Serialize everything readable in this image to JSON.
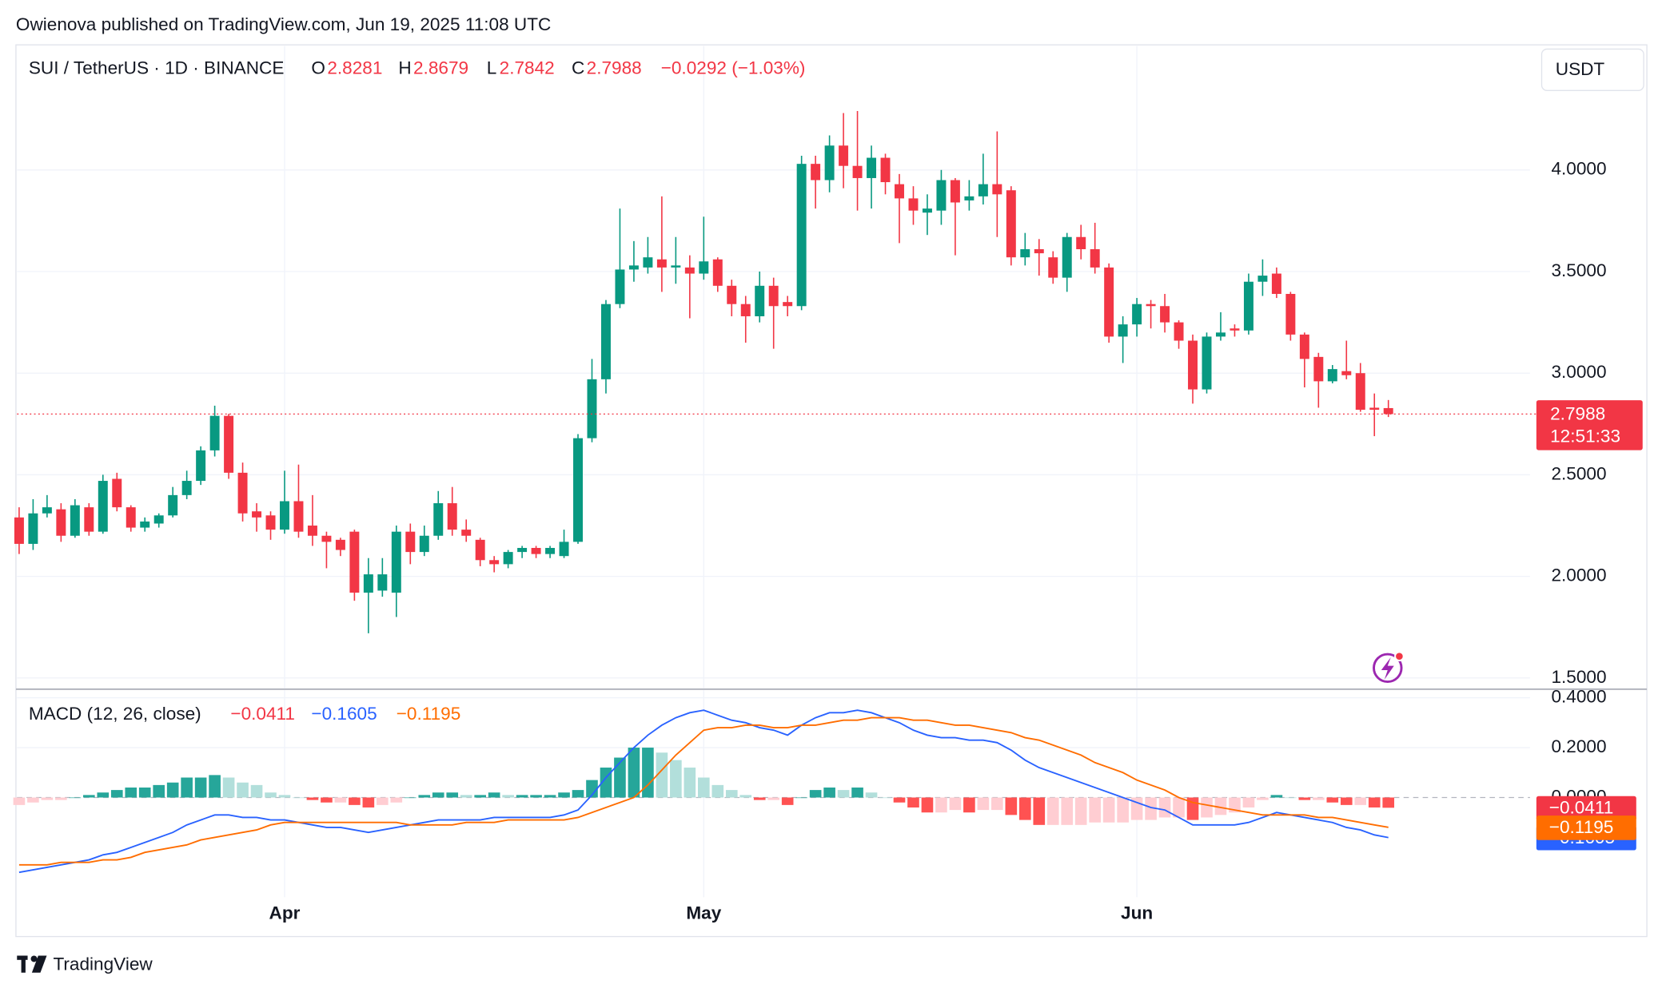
{
  "header": {
    "attribution": "Owienova published on TradingView.com, Jun 19, 2025 11:08 UTC",
    "logo": "TradingView"
  },
  "chart_data": [
    {
      "type": "candlestick",
      "title": "SUI / TetherUS · 1D · BINANCE",
      "currency": "USDT",
      "ohlc_letters": [
        "O",
        "H",
        "L",
        "C"
      ],
      "change_label": "−0.0292 (−1.03%)",
      "countdown": "12:51:33",
      "up_color": "#089981",
      "down_color": "#f23645",
      "grid": true,
      "ylim": [
        1.45,
        4.6
      ],
      "yticks": [
        {
          "value": 1.5,
          "label": "1.5000"
        },
        {
          "value": 2,
          "label": "2.0000"
        },
        {
          "value": 2.5,
          "label": "2.5000"
        },
        {
          "value": 3,
          "label": "3.0000"
        },
        {
          "value": 3.5,
          "label": "3.5000"
        },
        {
          "value": 4,
          "label": "4.0000"
        }
      ],
      "categories": [
        null,
        null,
        null,
        null,
        null,
        null,
        null,
        null,
        null,
        null,
        null,
        null,
        null,
        null,
        null,
        null,
        null,
        null,
        null,
        "Apr",
        null,
        null,
        null,
        null,
        null,
        null,
        null,
        null,
        null,
        null,
        null,
        null,
        null,
        null,
        null,
        null,
        null,
        null,
        null,
        null,
        null,
        null,
        null,
        null,
        null,
        null,
        null,
        null,
        null,
        "May",
        null,
        null,
        null,
        null,
        null,
        null,
        null,
        null,
        null,
        null,
        null,
        null,
        null,
        null,
        null,
        null,
        null,
        null,
        null,
        null,
        null,
        null,
        null,
        null,
        null,
        null,
        null,
        null,
        null,
        null,
        "Jun",
        null,
        null,
        null,
        null,
        null,
        null,
        null,
        null,
        null,
        null,
        null,
        null,
        null,
        null,
        null,
        null,
        null,
        null
      ],
      "open": [
        2.29,
        2.16,
        2.31,
        2.33,
        2.2,
        2.34,
        2.22,
        2.48,
        2.34,
        2.24,
        2.26,
        2.3,
        2.4,
        2.47,
        2.62,
        2.79,
        2.51,
        2.32,
        2.3,
        2.23,
        2.37,
        2.25,
        2.2,
        2.18,
        2.22,
        1.92,
        1.93,
        1.92,
        2.22,
        2.12,
        2.2,
        2.36,
        2.23,
        2.18,
        2.08,
        2.06,
        2.12,
        2.14,
        2.11,
        2.1,
        2.17,
        2.68,
        2.97,
        3.34,
        3.51,
        3.52,
        3.56,
        3.52,
        3.52,
        3.49,
        3.56,
        3.43,
        3.34,
        3.28,
        3.43,
        3.35,
        3.33,
        4.03,
        3.95,
        4.12,
        4.02,
        3.96,
        4.06,
        3.93,
        3.86,
        3.79,
        3.8,
        3.95,
        3.85,
        3.87,
        3.93,
        3.9,
        3.57,
        3.61,
        3.57,
        3.47,
        3.67,
        3.61,
        3.52,
        3.18,
        3.24,
        3.34,
        3.33,
        3.25,
        3.16,
        2.92,
        3.18,
        3.22,
        3.21,
        3.45,
        3.49,
        3.39,
        3.19,
        3.08,
        2.96,
        3.01,
        3.0,
        2.83,
        2.8281
      ],
      "high": [
        2.34,
        2.38,
        2.4,
        2.36,
        2.38,
        2.36,
        2.5,
        2.51,
        2.35,
        2.29,
        2.31,
        2.44,
        2.52,
        2.64,
        2.84,
        2.8,
        2.56,
        2.36,
        2.32,
        2.52,
        2.55,
        2.4,
        2.22,
        2.19,
        2.23,
        2.09,
        2.09,
        2.25,
        2.26,
        2.25,
        2.42,
        2.44,
        2.28,
        2.19,
        2.1,
        2.13,
        2.15,
        2.15,
        2.15,
        2.23,
        2.7,
        3.07,
        3.36,
        3.81,
        3.65,
        3.67,
        3.87,
        3.67,
        3.58,
        3.77,
        3.57,
        3.46,
        3.38,
        3.5,
        3.47,
        3.38,
        4.07,
        4.07,
        4.17,
        4.28,
        4.29,
        4.12,
        4.08,
        3.98,
        3.92,
        3.88,
        4.0,
        3.96,
        3.95,
        4.08,
        4.19,
        3.92,
        3.69,
        3.66,
        3.6,
        3.69,
        3.73,
        3.74,
        3.54,
        3.28,
        3.37,
        3.36,
        3.39,
        3.26,
        3.19,
        3.2,
        3.3,
        3.24,
        3.49,
        3.56,
        3.52,
        3.4,
        3.2,
        3.1,
        3.04,
        3.16,
        3.05,
        2.9,
        2.8679
      ],
      "low": [
        2.11,
        2.13,
        2.29,
        2.17,
        2.19,
        2.2,
        2.21,
        2.32,
        2.22,
        2.22,
        2.24,
        2.29,
        2.38,
        2.45,
        2.59,
        2.48,
        2.27,
        2.22,
        2.18,
        2.21,
        2.19,
        2.15,
        2.04,
        2.1,
        1.88,
        1.72,
        1.9,
        1.8,
        2.06,
        2.1,
        2.18,
        2.2,
        2.17,
        2.05,
        2.02,
        2.04,
        2.09,
        2.09,
        2.09,
        2.09,
        2.16,
        2.66,
        2.9,
        3.32,
        3.45,
        3.49,
        3.4,
        3.44,
        3.27,
        3.46,
        3.4,
        3.28,
        3.15,
        3.25,
        3.12,
        3.28,
        3.31,
        3.81,
        3.89,
        3.91,
        3.8,
        3.81,
        3.88,
        3.64,
        3.73,
        3.68,
        3.73,
        3.58,
        3.8,
        3.83,
        3.67,
        3.53,
        3.53,
        3.48,
        3.44,
        3.4,
        3.56,
        3.49,
        3.15,
        3.05,
        3.18,
        3.22,
        3.2,
        3.12,
        2.85,
        2.9,
        3.16,
        3.18,
        3.19,
        3.38,
        3.37,
        3.16,
        2.93,
        2.83,
        2.95,
        2.97,
        2.81,
        2.69,
        2.7842
      ],
      "close": [
        2.16,
        2.31,
        2.34,
        2.2,
        2.35,
        2.22,
        2.47,
        2.34,
        2.24,
        2.27,
        2.3,
        2.4,
        2.47,
        2.62,
        2.79,
        2.51,
        2.31,
        2.29,
        2.23,
        2.37,
        2.22,
        2.2,
        2.17,
        2.13,
        1.92,
        2.01,
        2.01,
        2.22,
        2.12,
        2.2,
        2.36,
        2.23,
        2.2,
        2.08,
        2.06,
        2.12,
        2.14,
        2.11,
        2.14,
        2.17,
        2.68,
        2.97,
        3.34,
        3.51,
        3.53,
        3.57,
        3.52,
        3.53,
        3.49,
        3.55,
        3.43,
        3.34,
        3.28,
        3.43,
        3.33,
        3.33,
        4.03,
        3.95,
        4.12,
        4.02,
        3.96,
        4.06,
        3.94,
        3.86,
        3.8,
        3.81,
        3.95,
        3.84,
        3.87,
        3.93,
        3.88,
        3.57,
        3.61,
        3.59,
        3.47,
        3.67,
        3.61,
        3.52,
        3.18,
        3.24,
        3.34,
        3.33,
        3.25,
        3.16,
        2.92,
        3.18,
        3.2,
        3.21,
        3.45,
        3.48,
        3.39,
        3.19,
        3.07,
        2.96,
        3.02,
        2.99,
        2.82,
        2.82,
        2.7988
      ]
    },
    {
      "type": "macd",
      "title": "MACD (12, 26, close)",
      "ylim": [
        -0.4,
        0.43
      ],
      "yticks": [
        {
          "value": 0,
          "label": "0.0000"
        },
        {
          "value": 0.2,
          "label": "0.2000"
        },
        {
          "value": 0.4,
          "label": "0.4000"
        }
      ],
      "legend_values": [
        {
          "value": -0.0411,
          "label": "−0.0411",
          "color": "#f23645"
        },
        {
          "value": -0.1605,
          "label": "−0.1605",
          "color": "#2962ff"
        },
        {
          "value": -0.1195,
          "label": "−0.1195",
          "color": "#ff6d00"
        }
      ],
      "histogram": {
        "colors": {
          "grow_above": "#26a69a",
          "fall_above": "#b2dfdb",
          "grow_below": "#ffcdd2",
          "fall_below": "#ff5252"
        },
        "values": [
          -0.03,
          -0.02,
          -0.01,
          -0.01,
          0.0,
          0.01,
          0.02,
          0.03,
          0.04,
          0.04,
          0.05,
          0.06,
          0.08,
          0.08,
          0.09,
          0.08,
          0.06,
          0.05,
          0.02,
          0.01,
          0.0,
          -0.01,
          -0.02,
          -0.02,
          -0.03,
          -0.04,
          -0.03,
          -0.02,
          0.0,
          0.01,
          0.02,
          0.02,
          0.01,
          0.01,
          0.02,
          0.01,
          0.01,
          0.01,
          0.01,
          0.02,
          0.03,
          0.07,
          0.12,
          0.16,
          0.2,
          0.2,
          0.18,
          0.15,
          0.12,
          0.08,
          0.05,
          0.03,
          0.01,
          -0.01,
          -0.01,
          -0.03,
          0.0,
          0.03,
          0.04,
          0.03,
          0.04,
          0.02,
          0.0,
          -0.02,
          -0.04,
          -0.06,
          -0.06,
          -0.05,
          -0.06,
          -0.05,
          -0.05,
          -0.07,
          -0.09,
          -0.11,
          -0.11,
          -0.11,
          -0.11,
          -0.1,
          -0.1,
          -0.1,
          -0.09,
          -0.09,
          -0.08,
          -0.08,
          -0.09,
          -0.08,
          -0.07,
          -0.06,
          -0.04,
          -0.01,
          0.01,
          0.0,
          -0.01,
          -0.01,
          -0.02,
          -0.03,
          -0.03,
          -0.04,
          -0.0411
        ]
      },
      "series": [
        {
          "color": "#2962ff",
          "values": [
            -0.3,
            -0.29,
            -0.28,
            -0.27,
            -0.26,
            -0.25,
            -0.23,
            -0.22,
            -0.2,
            -0.18,
            -0.16,
            -0.14,
            -0.11,
            -0.09,
            -0.07,
            -0.07,
            -0.08,
            -0.08,
            -0.09,
            -0.09,
            -0.1,
            -0.11,
            -0.12,
            -0.12,
            -0.13,
            -0.14,
            -0.13,
            -0.12,
            -0.11,
            -0.1,
            -0.09,
            -0.09,
            -0.09,
            -0.09,
            -0.08,
            -0.08,
            -0.08,
            -0.08,
            -0.08,
            -0.07,
            -0.05,
            0.01,
            0.08,
            0.14,
            0.2,
            0.25,
            0.29,
            0.32,
            0.34,
            0.35,
            0.33,
            0.31,
            0.3,
            0.28,
            0.27,
            0.25,
            0.29,
            0.32,
            0.34,
            0.34,
            0.35,
            0.34,
            0.32,
            0.3,
            0.27,
            0.25,
            0.24,
            0.24,
            0.23,
            0.23,
            0.22,
            0.19,
            0.15,
            0.12,
            0.1,
            0.08,
            0.06,
            0.04,
            0.02,
            0.0,
            -0.02,
            -0.04,
            -0.05,
            -0.08,
            -0.11,
            -0.11,
            -0.11,
            -0.11,
            -0.1,
            -0.08,
            -0.06,
            -0.07,
            -0.08,
            -0.09,
            -0.1,
            -0.12,
            -0.13,
            -0.15,
            -0.1605
          ]
        },
        {
          "color": "#ff6d00",
          "values": [
            -0.27,
            -0.27,
            -0.27,
            -0.26,
            -0.26,
            -0.26,
            -0.25,
            -0.25,
            -0.24,
            -0.22,
            -0.21,
            -0.2,
            -0.19,
            -0.17,
            -0.16,
            -0.15,
            -0.14,
            -0.13,
            -0.11,
            -0.1,
            -0.1,
            -0.1,
            -0.1,
            -0.1,
            -0.1,
            -0.1,
            -0.1,
            -0.1,
            -0.11,
            -0.11,
            -0.11,
            -0.11,
            -0.1,
            -0.1,
            -0.1,
            -0.09,
            -0.09,
            -0.09,
            -0.09,
            -0.09,
            -0.08,
            -0.06,
            -0.04,
            -0.02,
            0.0,
            0.05,
            0.11,
            0.17,
            0.22,
            0.27,
            0.28,
            0.28,
            0.29,
            0.29,
            0.28,
            0.28,
            0.29,
            0.29,
            0.3,
            0.31,
            0.31,
            0.32,
            0.32,
            0.32,
            0.31,
            0.31,
            0.3,
            0.29,
            0.29,
            0.28,
            0.27,
            0.26,
            0.24,
            0.23,
            0.21,
            0.19,
            0.17,
            0.14,
            0.12,
            0.1,
            0.07,
            0.05,
            0.03,
            0.0,
            -0.02,
            -0.03,
            -0.04,
            -0.05,
            -0.06,
            -0.07,
            -0.07,
            -0.07,
            -0.07,
            -0.08,
            -0.08,
            -0.09,
            -0.1,
            -0.11,
            -0.1195
          ]
        }
      ]
    }
  ]
}
